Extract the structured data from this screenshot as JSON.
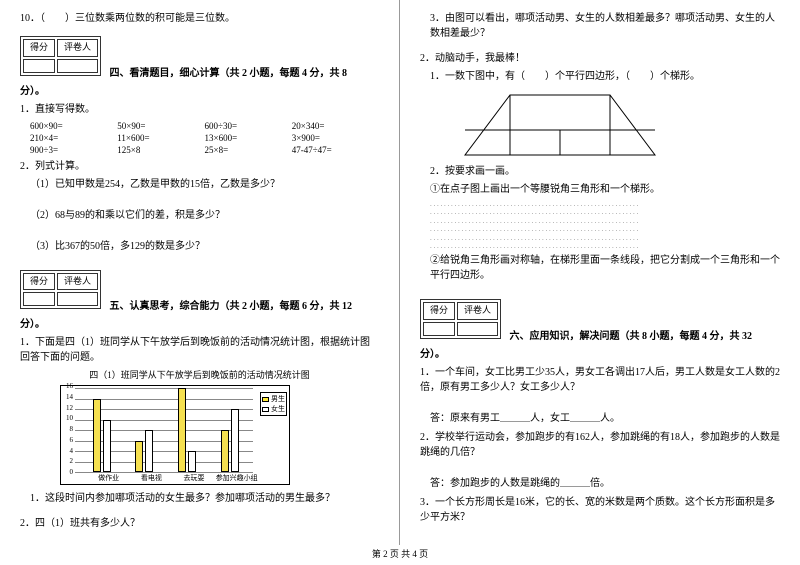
{
  "left": {
    "q10": "10．（　　）三位数乘两位数的积可能是三位数。",
    "score_h1": "得分",
    "score_h2": "评卷人",
    "sec4_title": "四、看清题目，细心计算（共 2 小题，每题 4 分，共 8",
    "sec4_tail": "分）。",
    "calc_intro": "1．直接写得数。",
    "calc": [
      "600×90=",
      "50×90=",
      "600÷30=",
      "20×340=",
      "210×4=",
      "11×600=",
      "13×600=",
      "3×900=",
      "900÷3=",
      "125×8",
      "25×8=",
      "47-47÷47="
    ],
    "list_calc": "2．列式计算。",
    "lc1": "（1）已知甲数是254，乙数是甲数的15倍，乙数是多少？",
    "lc2": "（2）68与89的和乘以它们的差，积是多少？",
    "lc3": "（3）比367的50倍，多129的数是多少？",
    "sec5_title": "五、认真思考，综合能力（共 2 小题，每题 6 分，共 12",
    "sec5_tail": "分）。",
    "q5_1": "1．下面是四（1）班同学从下午放学后到晚饭前的活动情况统计图，根据统计图回答下面的问题。",
    "chart_title": "四（1）班同学从下午放学后到晚饭前的活动情况统计图",
    "chart": {
      "ymax": 16,
      "ystep": 2,
      "cats": [
        "做作业",
        "看电视",
        "去玩耍",
        "参加兴趣小组"
      ],
      "male": [
        14,
        6,
        16,
        8
      ],
      "female": [
        10,
        8,
        4,
        12
      ],
      "colors": {
        "male": "#f5e050",
        "female": "#ffffff",
        "border": "#000000",
        "grid": "#888888"
      },
      "legend": {
        "m": "男生",
        "f": "女生"
      }
    },
    "q5_1a": "1．这段时间内参加哪项活动的女生最多？参加哪项活动的男生最多？",
    "q5_1b": "2．四（1）班共有多少人？",
    "footer": "第 2 页 共 4 页"
  },
  "right": {
    "q3": "3．由图可以看出，哪项活动男、女生的人数相差最多？哪项活动男、女生的人数相差最少？",
    "q2_head": "2．动脑动手，我最棒！",
    "q2_1": "1．一数下图中，有（　　）个平行四边形，（　　）个梯形。",
    "q2_2": "2．按要求画一画。",
    "q2_2a": "①在点子图上画出一个等腰锐角三角形和一个梯形。",
    "q2_2b": "②给锐角三角形画对称轴，在梯形里面一条线段，把它分割成一个三角形和一个平行四边形。",
    "sec6_title": "六、应用知识，解决问题（共 8 小题，每题 4 分，共 32",
    "sec6_tail": "分）。",
    "q6_1": "1．一个车间，女工比男工少35人，男女工各调出17人后，男工人数是女工人数的2倍，原有男工多少人？女工多少人？",
    "ans1": "答：原来有男工＿＿＿人，女工＿＿＿人。",
    "q6_2": "2．学校举行运动会，参加跑步的有162人，参加跳绳的有18人，参加跑步的人数是跳绳的几倍？",
    "ans2": "答：参加跑步的人数是跳绳的＿＿＿倍。",
    "q6_3": "3．一个长方形周长是16米，它的长、宽的米数是两个质数。这个长方形面积是多少平方米？"
  }
}
